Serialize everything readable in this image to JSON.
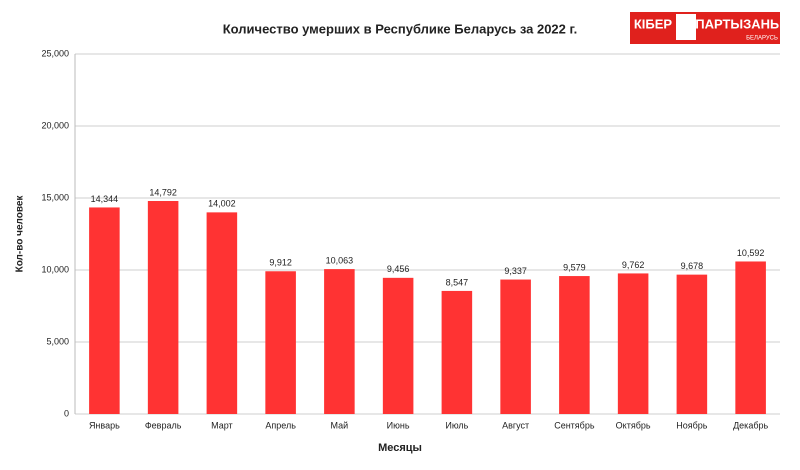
{
  "chart_data": {
    "type": "bar",
    "title": "Количество умерших в Республике Беларусь за 2022 г.",
    "x_label": "Месяцы",
    "y_label": "Кол-во человек",
    "logo": {
      "left": "КІБЕР",
      "right": "ПАРТЫЗАНЫ",
      "sub": "БЕЛАРУСЬ"
    },
    "categories": [
      "Январь",
      "Февраль",
      "Март",
      "Апрель",
      "Май",
      "Июнь",
      "Июль",
      "Август",
      "Сентябрь",
      "Октябрь",
      "Ноябрь",
      "Декабрь"
    ],
    "values": [
      14344,
      14792,
      14002,
      9912,
      10063,
      9456,
      8547,
      9337,
      9579,
      9762,
      9678,
      10592
    ],
    "value_labels": [
      "14,344",
      "14,792",
      "14,002",
      "9,912",
      "10,063",
      "9,456",
      "8,547",
      "9,337",
      "9,579",
      "9,762",
      "9,678",
      "10,592"
    ],
    "color": "#ff3333",
    "ylim": [
      0,
      25000
    ],
    "yticks": [
      0,
      {
        "value": 5000,
        "label": "5,000"
      },
      {
        "value": 10000,
        "label": "10,000"
      },
      {
        "value": 15000,
        "label": "15,000"
      },
      {
        "value": 20000,
        "label": "20,000"
      },
      {
        "value": 25000,
        "label": "25,000"
      }
    ],
    "grid": true
  }
}
